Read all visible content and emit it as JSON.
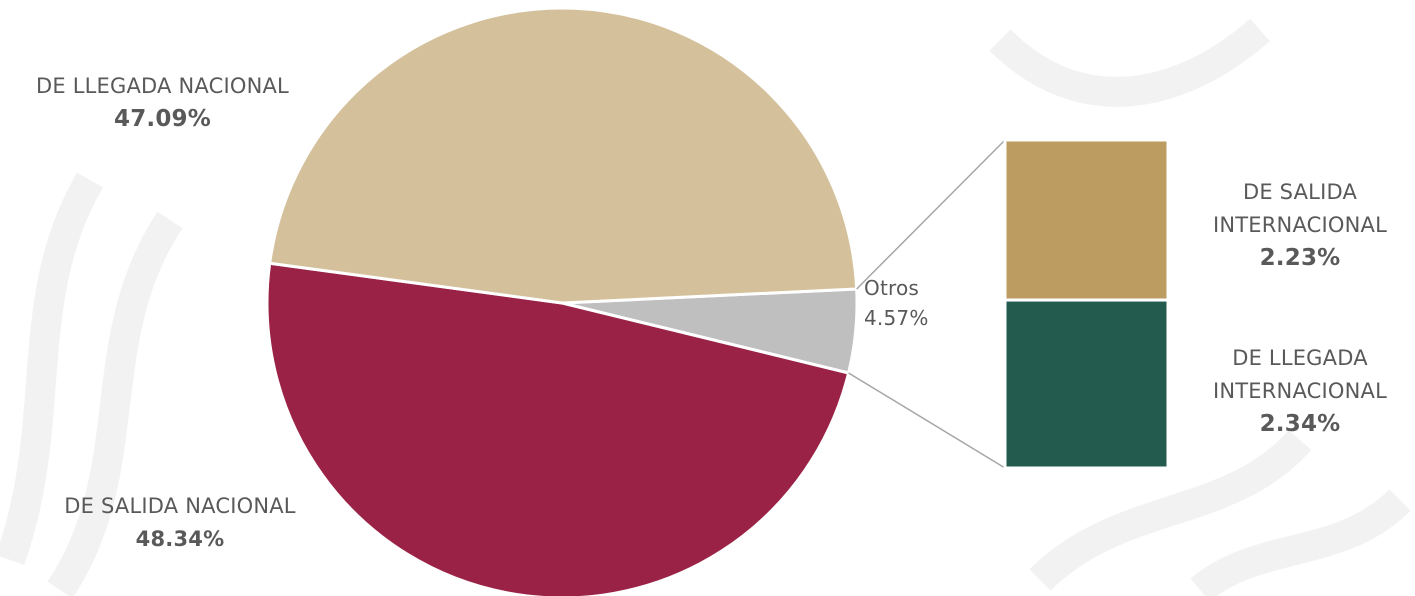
{
  "chart_data": {
    "type": "pie",
    "variant": "bar-of-pie",
    "slices": [
      {
        "label": "DE LLEGADA NACIONAL",
        "value": 47.09,
        "value_label": "47.09%",
        "color": "#d4c19c"
      },
      {
        "label": "Otros",
        "value": 4.57,
        "value_label": "4.57%",
        "color": "#bfbfbf"
      },
      {
        "label": "DE SALIDA NACIONAL",
        "value": 48.34,
        "value_label": "48.34%",
        "color": "#9b2247"
      }
    ],
    "breakdown": [
      {
        "label_line1": "DE SALIDA",
        "label_line2": "INTERNACIONAL",
        "value": 2.23,
        "value_label": "2.23%",
        "color": "#bc9c61"
      },
      {
        "label_line1": "DE LLEGADA",
        "label_line2": "INTERNACIONAL",
        "value": 2.34,
        "value_label": "2.34%",
        "color": "#235b4e"
      }
    ],
    "legend": "none"
  }
}
